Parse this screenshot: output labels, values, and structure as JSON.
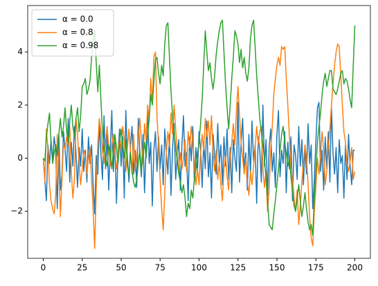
{
  "chart_data": {
    "type": "line",
    "x": [
      0,
      1,
      2,
      3,
      4,
      5,
      6,
      7,
      8,
      9,
      10,
      11,
      12,
      13,
      14,
      15,
      16,
      17,
      18,
      19,
      20,
      21,
      22,
      23,
      24,
      25,
      26,
      27,
      28,
      29,
      30,
      31,
      32,
      33,
      34,
      35,
      36,
      37,
      38,
      39,
      40,
      41,
      42,
      43,
      44,
      45,
      46,
      47,
      48,
      49,
      50,
      51,
      52,
      53,
      54,
      55,
      56,
      57,
      58,
      59,
      60,
      61,
      62,
      63,
      64,
      65,
      66,
      67,
      68,
      69,
      70,
      71,
      72,
      73,
      74,
      75,
      76,
      77,
      78,
      79,
      80,
      81,
      82,
      83,
      84,
      85,
      86,
      87,
      88,
      89,
      90,
      91,
      92,
      93,
      94,
      95,
      96,
      97,
      98,
      99,
      100,
      101,
      102,
      103,
      104,
      105,
      106,
      107,
      108,
      109,
      110,
      111,
      112,
      113,
      114,
      115,
      116,
      117,
      118,
      119,
      120,
      121,
      122,
      123,
      124,
      125,
      126,
      127,
      128,
      129,
      130,
      131,
      132,
      133,
      134,
      135,
      136,
      137,
      138,
      139,
      140,
      141,
      142,
      143,
      144,
      145,
      146,
      147,
      148,
      149,
      150,
      151,
      152,
      153,
      154,
      155,
      156,
      157,
      158,
      159,
      160,
      161,
      162,
      163,
      164,
      165,
      166,
      167,
      168,
      169,
      170,
      171,
      172,
      173,
      174,
      175,
      176,
      177,
      178,
      179,
      180,
      181,
      182,
      183,
      184,
      185,
      186,
      187,
      188,
      189,
      190,
      191,
      192,
      193,
      194,
      195,
      196,
      197,
      198,
      199,
      200
    ],
    "series": [
      {
        "name": "α = 0.0",
        "color": "#1f77b4",
        "values": [
          0.0,
          -0.8,
          -1.6,
          0.5,
          -0.2,
          0.7,
          -0.1,
          0.8,
          0.3,
          -1.9,
          0.9,
          -1.2,
          -0.6,
          1.0,
          0.3,
          -0.5,
          1.5,
          -0.9,
          0.6,
          -0.3,
          1.2,
          0.2,
          -1.1,
          0.4,
          -0.3,
          1.1,
          -0.5,
          0.3,
          -0.9,
          0.8,
          -0.2,
          0.5,
          -1.0,
          -2.1,
          0.1,
          -0.6,
          1.3,
          0.2,
          -0.8,
          1.6,
          -0.4,
          0.9,
          -1.2,
          0.3,
          1.8,
          -0.5,
          0.6,
          -1.7,
          0.2,
          1.1,
          -0.3,
          0.8,
          -1.5,
          1.8,
          0.0,
          -0.9,
          0.5,
          1.2,
          -0.6,
          0.3,
          -1.1,
          1.5,
          0.1,
          -0.7,
          0.9,
          -1.3,
          0.4,
          1.7,
          -0.2,
          0.6,
          -1.8,
          0.3,
          1.0,
          -0.5,
          0.8,
          -0.4,
          0.5,
          -1.0,
          1.1,
          0.2,
          -0.6,
          0.9,
          -1.4,
          0.4,
          1.3,
          -0.8,
          0.1,
          0.7,
          -1.2,
          0.5,
          1.6,
          -0.3,
          0.2,
          -1.6,
          0.8,
          -0.1,
          1.2,
          -0.9,
          0.4,
          -0.5,
          1.0,
          0.3,
          -1.1,
          0.6,
          -0.4,
          1.4,
          -0.7,
          0.2,
          -1.5,
          0.9,
          0.1,
          -0.6,
          1.3,
          -0.2,
          0.5,
          -1.0,
          0.8,
          -0.3,
          1.1,
          -0.8,
          0.4,
          -1.3,
          0.7,
          0.0,
          -0.5,
          2.1,
          -0.9,
          0.6,
          1.5,
          -0.4,
          0.2,
          -1.2,
          0.9,
          -0.6,
          1.4,
          -0.1,
          0.5,
          -1.7,
          0.8,
          0.3,
          -0.9,
          2.0,
          -0.3,
          0.7,
          -1.4,
          0.4,
          1.1,
          -0.5,
          0.2,
          -1.1,
          0.9,
          1.8,
          -0.7,
          0.3,
          -0.2,
          1.0,
          -1.3,
          0.6,
          -0.4,
          0.8,
          -1.6,
          0.5,
          0.1,
          -0.8,
          1.2,
          -0.3,
          0.7,
          -1.0,
          0.4,
          -0.6,
          1.3,
          -0.2,
          0.5,
          -1.9,
          -0.8,
          0.6,
          1.9,
          2.1,
          -0.5,
          0.3,
          -1.2,
          0.8,
          -0.4,
          1.0,
          -0.9,
          1.9,
          0.2,
          -0.6,
          0.4,
          -1.3,
          0.7,
          -0.2,
          0.1,
          -1.5,
          0.5,
          -0.8,
          0.9,
          -0.3,
          -1.0,
          0.3,
          0.3
        ]
      },
      {
        "name": "α = 0.8",
        "color": "#ff7f0e",
        "values": [
          0.0,
          -0.9,
          1.1,
          0.3,
          -1.0,
          -1.6,
          -1.9,
          -2.1,
          -1.4,
          0.9,
          -0.2,
          -2.2,
          -0.8,
          0.6,
          0.3,
          0.8,
          0.5,
          1.2,
          -0.5,
          -1.5,
          -0.8,
          1.5,
          0.9,
          -0.2,
          -1.0,
          -0.4,
          0.3,
          0.1,
          -0.6,
          0.0,
          0.4,
          -0.8,
          -1.9,
          -3.4,
          -1.2,
          0.5,
          1.5,
          1.0,
          0.3,
          -0.2,
          0.6,
          1.2,
          0.4,
          -0.3,
          0.5,
          0.9,
          0.2,
          -0.4,
          0.1,
          0.8,
          0.3,
          1.2,
          0.7,
          -0.5,
          0.4,
          1.1,
          0.2,
          -0.6,
          0.9,
          -0.5,
          0.1,
          0.8,
          1.5,
          0.6,
          -0.2,
          1.3,
          0.7,
          2.0,
          1.4,
          3.0,
          2.1,
          3.8,
          4.0,
          1.6,
          0.5,
          -0.8,
          -1.9,
          -2.7,
          -1.3,
          0.2,
          1.0,
          0.4,
          1.7,
          0.9,
          2.0,
          1.1,
          0.3,
          -0.6,
          0.2,
          -0.4,
          0.0,
          0.7,
          -0.5,
          1.0,
          0.4,
          1.2,
          0.6,
          -0.3,
          -1.0,
          -0.4,
          -1.0,
          0.2,
          0.9,
          0.3,
          1.5,
          0.8,
          1.4,
          0.5,
          1.6,
          0.2,
          -0.5,
          0.3,
          -0.8,
          -0.2,
          -1.0,
          -1.6,
          -0.4,
          0.1,
          -0.7,
          -1.2,
          0.0,
          0.6,
          1.3,
          0.5,
          1.8,
          2.7,
          1.6,
          0.6,
          0.0,
          -0.6,
          0.0,
          -0.9,
          -1.4,
          -0.5,
          -1.0,
          -0.3,
          0.4,
          1.2,
          0.5,
          1.0,
          1.2,
          -0.4,
          -1.1,
          -0.5,
          -2.0,
          -1.2,
          0.3,
          1.2,
          2.4,
          3.0,
          3.5,
          3.8,
          3.5,
          4.2,
          4.1,
          4.2,
          3.0,
          2.0,
          0.8,
          -0.3,
          -0.8,
          -1.5,
          -2.0,
          -1.2,
          -2.5,
          -1.8,
          -0.9,
          -0.2,
          0.5,
          0.0,
          -1.0,
          -2.2,
          -3.0,
          -3.3,
          -2.0,
          -1.1,
          0.0,
          -0.6,
          0.1,
          1.0,
          0.3,
          -1.0,
          -0.5,
          0.4,
          1.1,
          2.0,
          2.8,
          3.5,
          4.0,
          4.3,
          4.2,
          3.1,
          2.0,
          1.0,
          0.6,
          -0.2,
          -0.5,
          -0.1,
          0.4,
          -0.8,
          -0.5
        ]
      },
      {
        "name": "α = 0.98",
        "color": "#2ca02c",
        "values": [
          0.0,
          -0.1,
          0.8,
          1.3,
          1.7,
          0.6,
          -0.2,
          0.2,
          0.5,
          0.1,
          0.9,
          1.5,
          0.8,
          1.2,
          1.9,
          1.0,
          0.6,
          1.4,
          2.0,
          1.2,
          0.8,
          1.5,
          1.9,
          1.0,
          1.6,
          2.7,
          2.8,
          3.0,
          2.4,
          2.6,
          2.9,
          3.8,
          4.5,
          4.8,
          3.6,
          2.5,
          3.5,
          2.2,
          1.0,
          0.4,
          0.0,
          -0.3,
          0.5,
          0.2,
          -0.4,
          0.3,
          0.9,
          0.4,
          -0.2,
          0.6,
          1.1,
          0.5,
          0.0,
          0.7,
          -0.3,
          -0.6,
          0.2,
          -0.5,
          -0.9,
          -1.1,
          -0.8,
          -0.2,
          0.3,
          -0.5,
          0.1,
          0.6,
          0.0,
          0.8,
          1.5,
          2.4,
          2.0,
          2.9,
          3.7,
          3.8,
          3.2,
          2.8,
          3.5,
          3.1,
          4.3,
          5.0,
          5.1,
          3.8,
          2.5,
          1.6,
          1.0,
          0.4,
          -0.1,
          -0.6,
          -0.9,
          -1.3,
          -1.0,
          -1.5,
          -2.2,
          -1.7,
          -1.9,
          -1.2,
          -1.5,
          -0.8,
          -0.4,
          0.2,
          0.6,
          1.3,
          2.2,
          3.5,
          4.8,
          4.0,
          3.3,
          3.6,
          3.0,
          2.6,
          3.1,
          3.9,
          4.4,
          4.8,
          5.1,
          5.2,
          4.0,
          2.8,
          1.9,
          1.1,
          2.0,
          3.0,
          3.8,
          4.8,
          4.6,
          4.3,
          3.6,
          4.1,
          3.4,
          3.8,
          3.2,
          2.9,
          3.4,
          4.5,
          5.0,
          5.2,
          4.2,
          3.1,
          2.3,
          1.5,
          1.0,
          0.5,
          0.0,
          -0.8,
          -1.6,
          -2.5,
          -2.6,
          -2.7,
          -2.1,
          -1.6,
          -1.0,
          -0.4,
          0.3,
          0.9,
          1.2,
          0.6,
          0.2,
          -0.3,
          0.0,
          -0.7,
          -1.2,
          -1.8,
          -2.0,
          -1.5,
          -1.0,
          -1.6,
          -2.2,
          -1.8,
          -1.3,
          -1.9,
          -2.4,
          -2.7,
          -2.5,
          -2.9,
          -1.5,
          -0.5,
          0.6,
          1.2,
          1.7,
          2.4,
          2.9,
          3.2,
          2.7,
          3.0,
          3.3,
          3.3,
          2.6,
          2.5,
          2.4,
          2.6,
          2.9,
          3.2,
          3.3,
          2.8,
          3.0,
          2.9,
          2.6,
          2.2,
          1.9,
          3.5,
          5.0
        ]
      }
    ],
    "xlim": [
      -10,
      210
    ],
    "ylim": [
      -3.77,
      5.75
    ],
    "xticks": [
      0,
      25,
      50,
      75,
      100,
      125,
      150,
      175,
      200
    ],
    "yticks": [
      {
        "value": -2,
        "label": "−2"
      },
      0,
      2,
      4
    ],
    "legend": "upper left",
    "grid": false
  }
}
